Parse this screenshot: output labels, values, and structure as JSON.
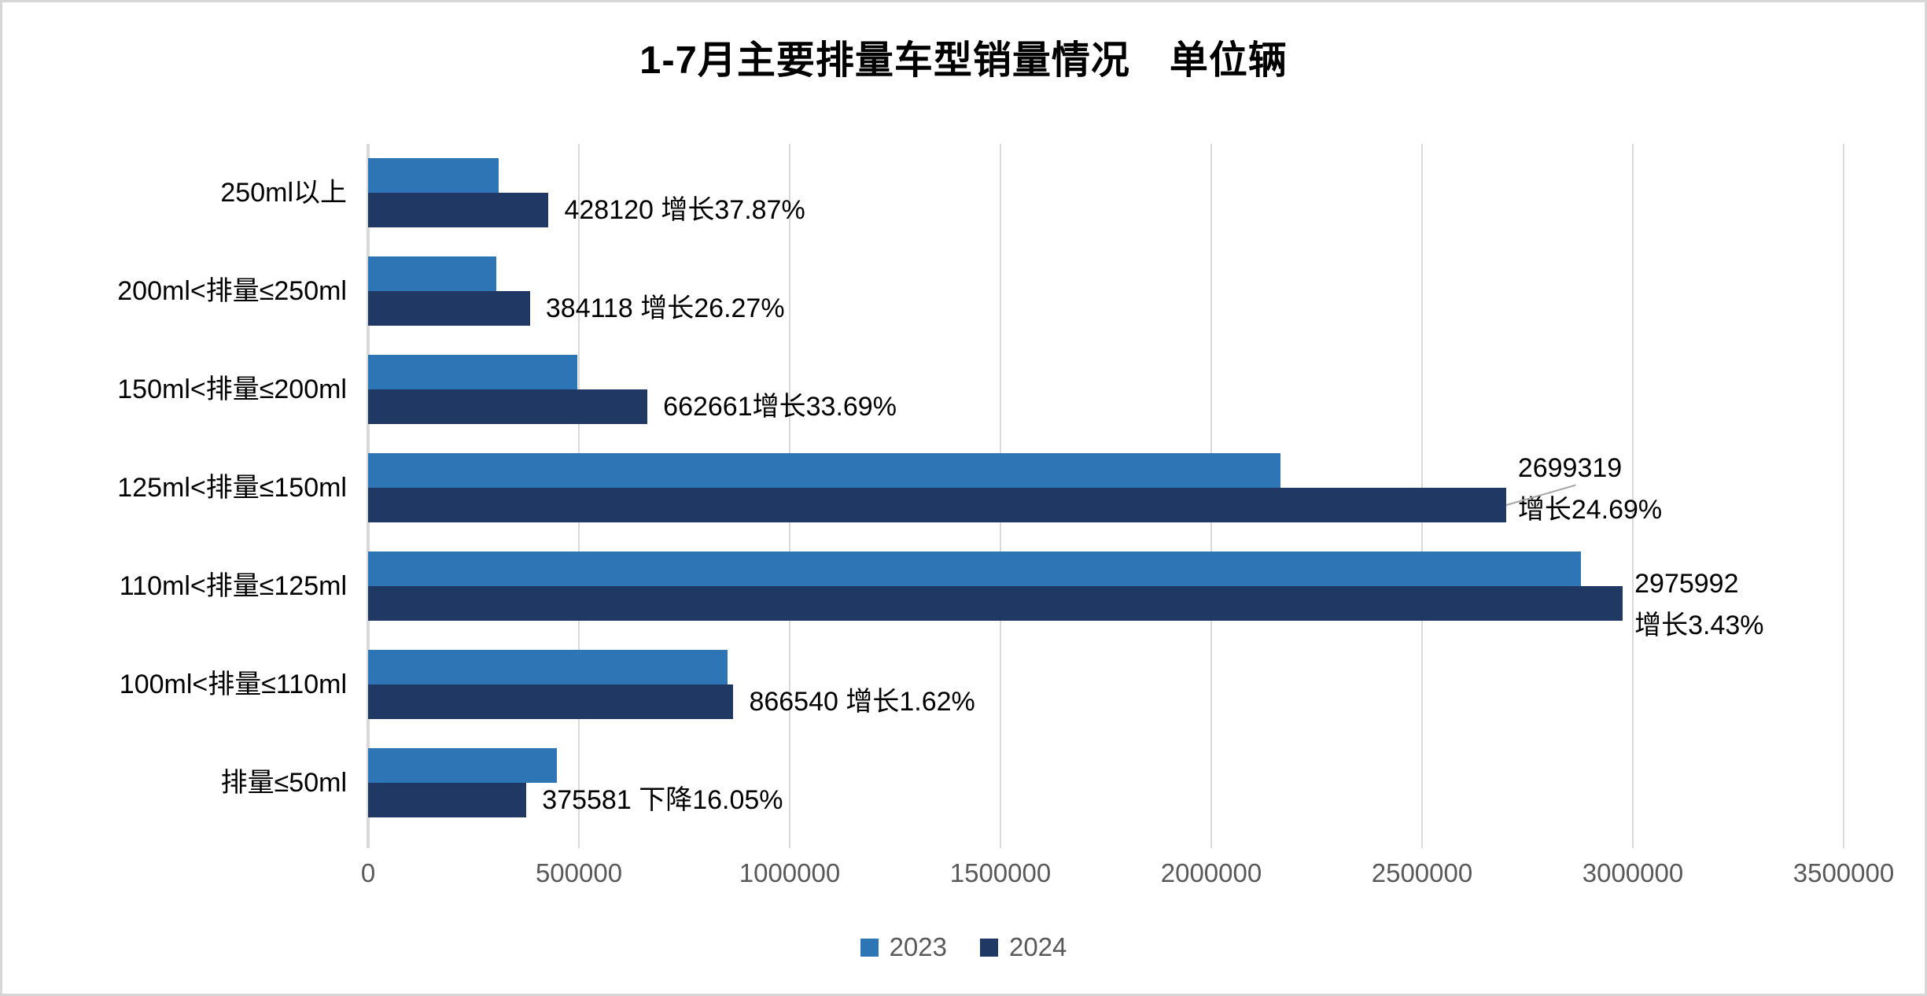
{
  "title": "1-7月主要排量车型销量情况　单位辆",
  "legend": {
    "items": [
      {
        "label": "2023",
        "color": "#2E75B6"
      },
      {
        "label": "2024",
        "color": "#1F3864"
      }
    ]
  },
  "colors": {
    "bar_2023": "#2E75B6",
    "bar_2024": "#1F3864",
    "gridline": "#D9D9D9",
    "axis_text": "#595959",
    "label_text": "#000000",
    "frame_border": "#D6D6D6",
    "leader_line": "#A6A6A6"
  },
  "x_axis": {
    "min": 0,
    "max": 3500000,
    "ticks": [
      "0",
      "500000",
      "1000000",
      "1500000",
      "2000000",
      "2500000",
      "3000000",
      "3500000"
    ]
  },
  "chart_data": {
    "type": "bar",
    "orientation": "horizontal",
    "title": "1-7月主要排量车型销量情况　单位辆",
    "categories": [
      "250ml以上",
      "200ml<排量≤250ml",
      "150ml<排量≤200ml",
      "125ml<排量≤150ml",
      "110ml<排量≤125ml",
      "100ml<排量≤110ml",
      "排量≤50ml"
    ],
    "series": [
      {
        "name": "2023",
        "color": "#2E75B6",
        "values": [
          310500,
          304200,
          495700,
          2164800,
          2877300,
          852700,
          447400
        ],
        "note": "estimated from bar lengths and growth percentages"
      },
      {
        "name": "2024",
        "color": "#1F3864",
        "values": [
          428120,
          384118,
          662661,
          2699319,
          2975992,
          866540,
          375581
        ]
      }
    ],
    "data_labels": [
      {
        "lines": [
          "428120  增长37.87%"
        ]
      },
      {
        "lines": [
          "384118  增长26.27%"
        ]
      },
      {
        "lines": [
          "662661增长33.69%"
        ]
      },
      {
        "lines": [
          "2699319",
          "增长24.69%"
        ]
      },
      {
        "lines": [
          "2975992",
          "增长3.43%"
        ]
      },
      {
        "lines": [
          "866540  增长1.62%"
        ]
      },
      {
        "lines": [
          "375581 下降16.05%"
        ]
      }
    ],
    "xlim": [
      0,
      3500000
    ],
    "grid": true,
    "legend_position": "bottom"
  }
}
